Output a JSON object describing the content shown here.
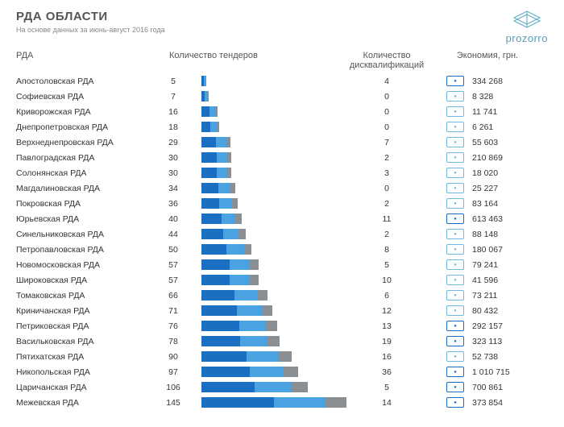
{
  "title": "РДА ОБЛАСТИ",
  "subtitle": "На основе данных за июнь-август 2016 года",
  "logo_text": "prozorro",
  "headers": {
    "name": "РДА",
    "tenders": "Количество тендеров",
    "disq": "Количество дисквалификаций",
    "econ": "Экономия, грн."
  },
  "bar_chart": {
    "max_value": 145,
    "segment_colors": [
      "#1b6fc2",
      "#4aa3e0",
      "#8a8f94"
    ],
    "segment_ratios": [
      0.5,
      0.35,
      0.15
    ]
  },
  "money_icon_colors": {
    "dark": "#1b6fc2",
    "light": "#6fb9e5"
  },
  "rows": [
    {
      "name": "Апостоловская РДА",
      "tenders": 5,
      "disq": 4,
      "econ": "334 268",
      "icon": "dark"
    },
    {
      "name": "Софиевская РДА",
      "tenders": 7,
      "disq": 0,
      "econ": "8 328",
      "icon": "light"
    },
    {
      "name": "Криворожская РДА",
      "tenders": 16,
      "disq": 0,
      "econ": "11 741",
      "icon": "light"
    },
    {
      "name": "Днепропетровская РДА",
      "tenders": 18,
      "disq": 0,
      "econ": "6 261",
      "icon": "light"
    },
    {
      "name": "Верхнеднепровская РДА",
      "tenders": 29,
      "disq": 7,
      "econ": "55 603",
      "icon": "light"
    },
    {
      "name": "Павлоградская РДА",
      "tenders": 30,
      "disq": 2,
      "econ": "210 869",
      "icon": "light"
    },
    {
      "name": "Солонянская РДА",
      "tenders": 30,
      "disq": 3,
      "econ": "18 020",
      "icon": "light"
    },
    {
      "name": "Магдалиновская РДА",
      "tenders": 34,
      "disq": 0,
      "econ": "25 227",
      "icon": "light"
    },
    {
      "name": "Покровская РДА",
      "tenders": 36,
      "disq": 2,
      "econ": "83 164",
      "icon": "light"
    },
    {
      "name": "Юрьевская РДА",
      "tenders": 40,
      "disq": 11,
      "econ": "613 463",
      "icon": "dark"
    },
    {
      "name": "Синельниковская РДА",
      "tenders": 44,
      "disq": 2,
      "econ": "88 148",
      "icon": "light"
    },
    {
      "name": "Петропавловская РДА",
      "tenders": 50,
      "disq": 8,
      "econ": "180 067",
      "icon": "light"
    },
    {
      "name": "Новомосковская РДА",
      "tenders": 57,
      "disq": 5,
      "econ": "79 241",
      "icon": "light"
    },
    {
      "name": "Широковская РДА",
      "tenders": 57,
      "disq": 10,
      "econ": "41 596",
      "icon": "light"
    },
    {
      "name": "Томаковская РДА",
      "tenders": 66,
      "disq": 6,
      "econ": "73 211",
      "icon": "light"
    },
    {
      "name": "Криничанская РДА",
      "tenders": 71,
      "disq": 12,
      "econ": "80 432",
      "icon": "light"
    },
    {
      "name": "Петриковская РДА",
      "tenders": 76,
      "disq": 13,
      "econ": "292 157",
      "icon": "dark"
    },
    {
      "name": "Васильковская РДА",
      "tenders": 78,
      "disq": 19,
      "econ": "323 113",
      "icon": "dark"
    },
    {
      "name": "Пятихатская РДА",
      "tenders": 90,
      "disq": 16,
      "econ": "52 738",
      "icon": "light"
    },
    {
      "name": "Никопольская РДА",
      "tenders": 97,
      "disq": 36,
      "econ": "1 010 715",
      "icon": "dark"
    },
    {
      "name": "Царичанская РДА",
      "tenders": 106,
      "disq": 5,
      "econ": "700 861",
      "icon": "dark"
    },
    {
      "name": "Межевская РДА",
      "tenders": 145,
      "disq": 14,
      "econ": "373 854",
      "icon": "dark"
    }
  ]
}
